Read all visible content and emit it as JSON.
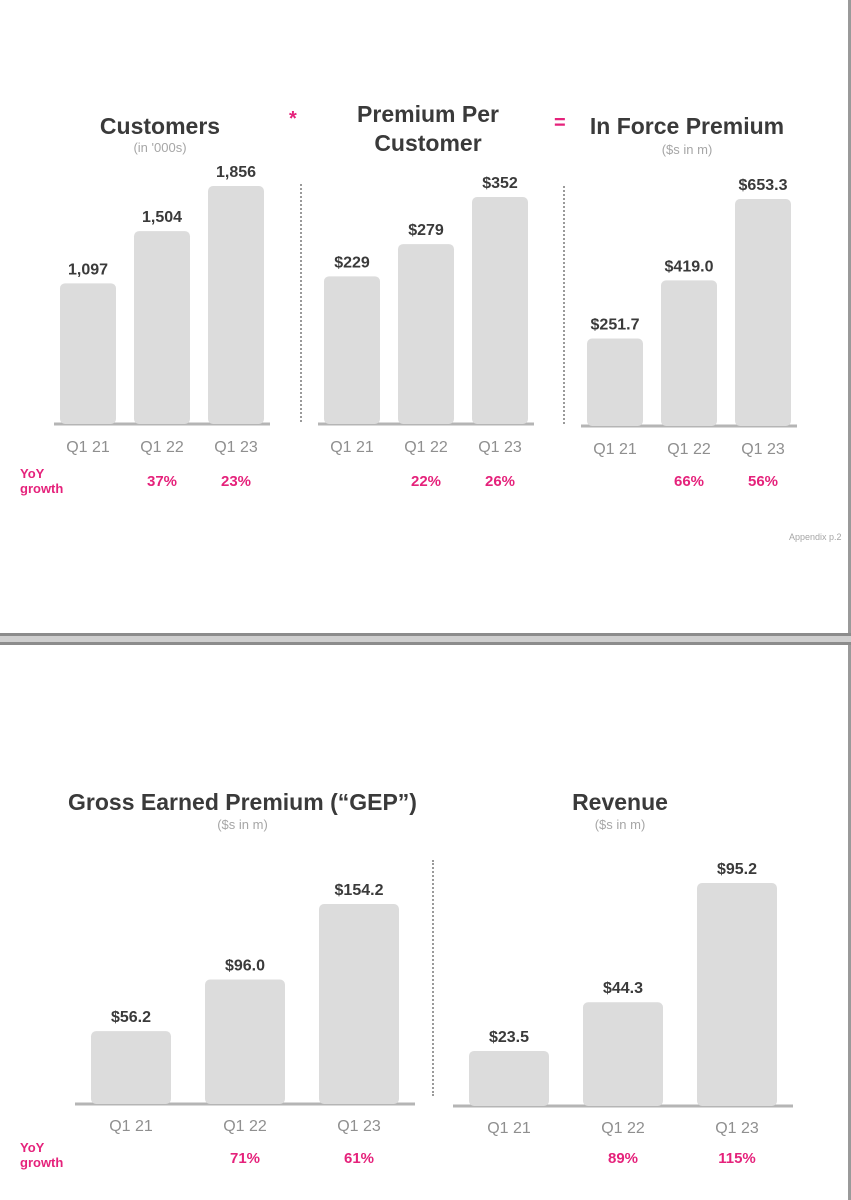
{
  "top_slide": {
    "operator_multiply": "*",
    "operator_equals": "=",
    "yoy_label_line1": "YoY",
    "yoy_label_line2": "growth",
    "appendix_note": "Appendix p.2"
  },
  "bottom_slide": {
    "yoy_label_line1": "YoY",
    "yoy_label_line2": "growth"
  },
  "chart_data": [
    {
      "type": "bar",
      "title": "Customers",
      "subtitle": "(in '000s)",
      "categories": [
        "Q1 21",
        "Q1 22",
        "Q1 23"
      ],
      "values": [
        1097,
        1504,
        1856
      ],
      "value_labels": [
        "1,097",
        "1,504",
        "1,856"
      ],
      "yoy_growth": [
        "",
        "37%",
        "23%"
      ],
      "ylim": [
        0,
        1900
      ]
    },
    {
      "type": "bar",
      "title": "Premium Per Customer",
      "title_lines": [
        "Premium Per",
        "Customer"
      ],
      "subtitle": "",
      "categories": [
        "Q1 21",
        "Q1 22",
        "Q1 23"
      ],
      "values": [
        229,
        279,
        352
      ],
      "value_labels": [
        "$229",
        "$279",
        "$352"
      ],
      "yoy_growth": [
        "",
        "22%",
        "26%"
      ],
      "ylim": [
        0,
        385
      ]
    },
    {
      "type": "bar",
      "title": "In Force Premium",
      "subtitle": "($s in m)",
      "categories": [
        "Q1 21",
        "Q1 22",
        "Q1 23"
      ],
      "values": [
        251.7,
        419.0,
        653.3
      ],
      "value_labels": [
        "$251.7",
        "$419.0",
        "$653.3"
      ],
      "yoy_growth": [
        "",
        "66%",
        "56%"
      ],
      "ylim": [
        0,
        685
      ]
    },
    {
      "type": "bar",
      "title": "Gross Earned Premium (“GEP”)",
      "subtitle": "($s in m)",
      "categories": [
        "Q1 21",
        "Q1 22",
        "Q1 23"
      ],
      "values": [
        56.2,
        96.0,
        154.2
      ],
      "value_labels": [
        "$56.2",
        "$96.0",
        "$154.2"
      ],
      "yoy_growth": [
        "",
        "71%",
        "61%"
      ],
      "ylim": [
        0,
        195
      ]
    },
    {
      "type": "bar",
      "title": "Revenue",
      "subtitle": "($s in m)",
      "categories": [
        "Q1 21",
        "Q1 22",
        "Q1 23"
      ],
      "values": [
        23.5,
        44.3,
        95.2
      ],
      "value_labels": [
        "$23.5",
        "$44.3",
        "$95.2"
      ],
      "yoy_growth": [
        "",
        "89%",
        "115%"
      ],
      "ylim": [
        0,
        103
      ]
    }
  ]
}
